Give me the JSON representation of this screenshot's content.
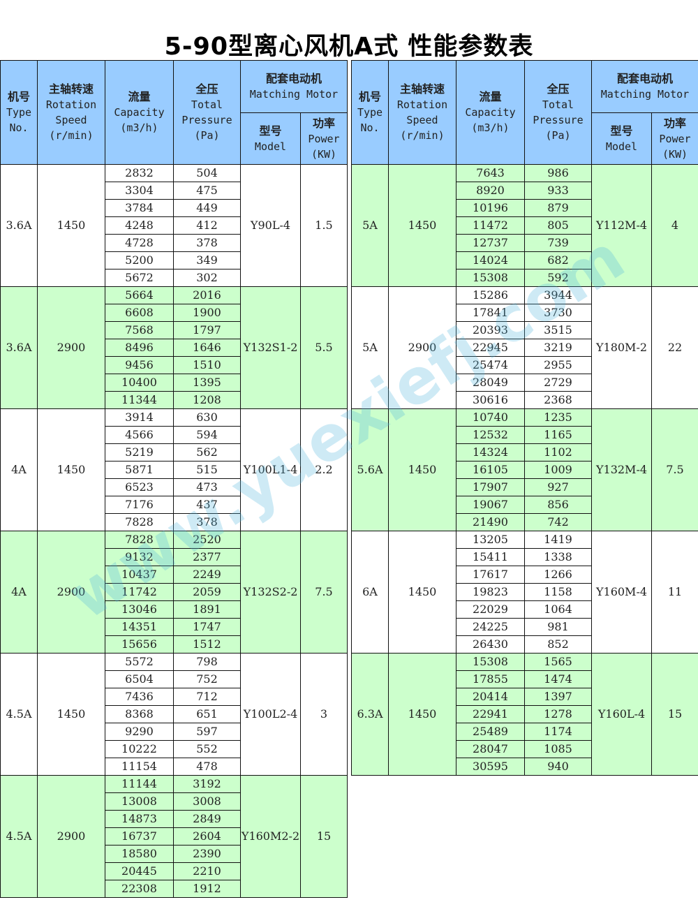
{
  "title": "5-90型离心风机A式 性能参数表",
  "watermark": "www.yuexiefj.com",
  "colors": {
    "header": "#99ccff",
    "green_row": "#ccffcc"
  },
  "headers": {
    "type_cn": "机号",
    "type_en1": "Type",
    "type_en2": "No.",
    "speed_cn": "主轴转速",
    "speed_en1": "Rotation",
    "speed_en2": "Speed",
    "speed_unit": "(r/min)",
    "cap_cn": "流量",
    "cap_en": "Capacity",
    "cap_unit": "(m3/h)",
    "pres_cn": "全压",
    "pres_en1": "Total",
    "pres_en2": "Pressure",
    "pres_unit": "(Pa)",
    "motor_cn": "配套电动机",
    "motor_en": "Matching Motor",
    "model_cn": "型号",
    "model_en": "Model",
    "power_cn": "功率",
    "power_en": "Power",
    "power_unit": "(KW)"
  },
  "left_groups": [
    {
      "type": "3.6A",
      "speed": "1450",
      "model": "Y90L-4",
      "power": "1.5",
      "bg": "white",
      "capacity": [
        "2832",
        "3304",
        "3784",
        "4248",
        "4728",
        "5200",
        "5672"
      ],
      "pressure": [
        "504",
        "475",
        "449",
        "412",
        "378",
        "349",
        "302"
      ]
    },
    {
      "type": "3.6A",
      "speed": "2900",
      "model": "Y132S1-2",
      "power": "5.5",
      "bg": "green",
      "capacity": [
        "5664",
        "6608",
        "7568",
        "8496",
        "9456",
        "10400",
        "11344"
      ],
      "pressure": [
        "2016",
        "1900",
        "1797",
        "1646",
        "1510",
        "1395",
        "1208"
      ]
    },
    {
      "type": "4A",
      "speed": "1450",
      "model": "Y100L1-4",
      "power": "2.2",
      "bg": "white",
      "capacity": [
        "3914",
        "4566",
        "5219",
        "5871",
        "6523",
        "7176",
        "7828"
      ],
      "pressure": [
        "630",
        "594",
        "562",
        "515",
        "473",
        "437",
        "378"
      ]
    },
    {
      "type": "4A",
      "speed": "2900",
      "model": "Y132S2-2",
      "power": "7.5",
      "bg": "green",
      "capacity": [
        "7828",
        "9132",
        "10437",
        "11742",
        "13046",
        "14351",
        "15656"
      ],
      "pressure": [
        "2520",
        "2377",
        "2249",
        "2059",
        "1891",
        "1747",
        "1512"
      ]
    },
    {
      "type": "4.5A",
      "speed": "1450",
      "model": "Y100L2-4",
      "power": "3",
      "bg": "white",
      "capacity": [
        "5572",
        "6504",
        "7436",
        "8368",
        "9290",
        "10222",
        "11154"
      ],
      "pressure": [
        "798",
        "752",
        "712",
        "651",
        "597",
        "552",
        "478"
      ]
    },
    {
      "type": "4.5A",
      "speed": "2900",
      "model": "Y160M2-2",
      "power": "15",
      "bg": "green",
      "capacity": [
        "11144",
        "13008",
        "14873",
        "16737",
        "18580",
        "20445",
        "22308"
      ],
      "pressure": [
        "3192",
        "3008",
        "2849",
        "2604",
        "2390",
        "2210",
        "1912"
      ]
    }
  ],
  "right_groups": [
    {
      "type": "5A",
      "speed": "1450",
      "model": "Y112M-4",
      "power": "4",
      "bg": "green",
      "capacity": [
        "7643",
        "8920",
        "10196",
        "11472",
        "12737",
        "14024",
        "15308"
      ],
      "pressure": [
        "986",
        "933",
        "879",
        "805",
        "739",
        "682",
        "592"
      ]
    },
    {
      "type": "5A",
      "speed": "2900",
      "model": "Y180M-2",
      "power": "22",
      "bg": "white",
      "capacity": [
        "15286",
        "17841",
        "20393",
        "22945",
        "25474",
        "28049",
        "30616"
      ],
      "pressure": [
        "3944",
        "3730",
        "3515",
        "3219",
        "2955",
        "2729",
        "2368"
      ]
    },
    {
      "type": "5.6A",
      "speed": "1450",
      "model": "Y132M-4",
      "power": "7.5",
      "bg": "green",
      "capacity": [
        "10740",
        "12532",
        "14324",
        "16105",
        "17907",
        "19067",
        "21490"
      ],
      "pressure": [
        "1235",
        "1165",
        "1102",
        "1009",
        "927",
        "856",
        "742"
      ]
    },
    {
      "type": "6A",
      "speed": "1450",
      "model": "Y160M-4",
      "power": "11",
      "bg": "white",
      "capacity": [
        "13205",
        "15411",
        "17617",
        "19823",
        "22029",
        "24225",
        "26430"
      ],
      "pressure": [
        "1419",
        "1338",
        "1266",
        "1158",
        "1064",
        "981",
        "852"
      ]
    },
    {
      "type": "6.3A",
      "speed": "1450",
      "model": "Y160L-4",
      "power": "15",
      "bg": "green",
      "capacity": [
        "15308",
        "17855",
        "20414",
        "22941",
        "25489",
        "28047",
        "30595"
      ],
      "pressure": [
        "1565",
        "1474",
        "1397",
        "1278",
        "1174",
        "1085",
        "940"
      ]
    }
  ]
}
